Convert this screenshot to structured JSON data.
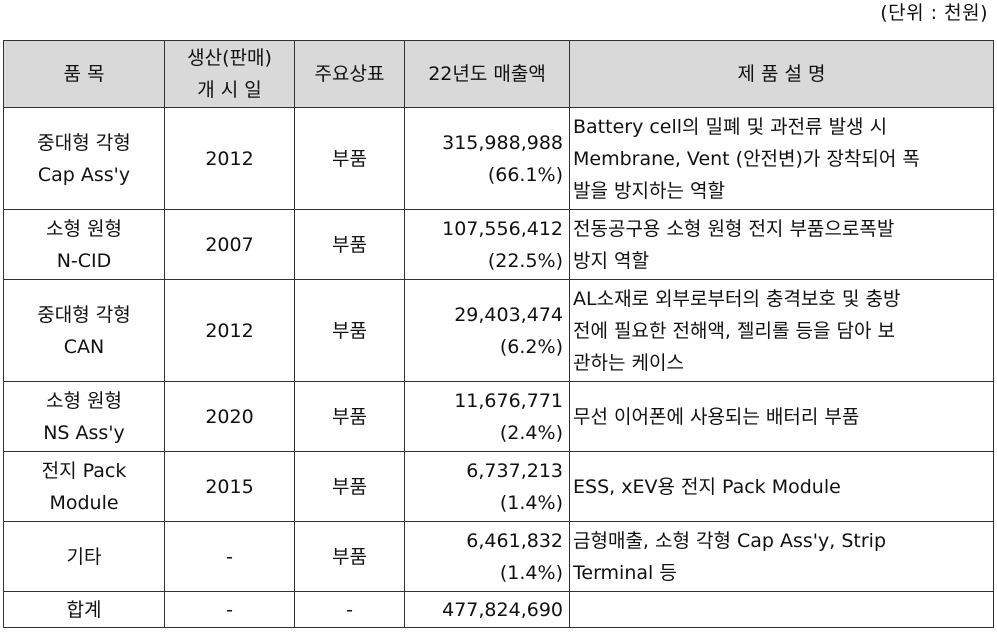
{
  "unit_note": "(단위 : 천원)",
  "header": {
    "item": "품 목",
    "start_line1": "생산(판매)",
    "start_line2": "개 시 일",
    "trademark": "주요상표",
    "sales_22": "22년도 매출액",
    "description": "제 품 설 명"
  },
  "rows": [
    {
      "name1": "중대형 각형",
      "name2": "Cap Ass'y",
      "year": "2012",
      "brand": "부품",
      "amount": "315,988,988",
      "pct": "(66.1%)",
      "desc1": "Battery cell의 밀폐 및 과전류 발생 시",
      "desc2": "Membrane, Vent (안전변)가 장착되어 폭",
      "desc3": "발을 방지하는 역할"
    },
    {
      "name1": "소형 원형",
      "name2": "N-CID",
      "year": "2007",
      "brand": "부품",
      "amount": "107,556,412",
      "pct": "(22.5%)",
      "desc1": "전동공구용 소형 원형 전지 부품으로폭발",
      "desc2": "방지 역할"
    },
    {
      "name1": "중대형 각형",
      "name2": "CAN",
      "year": "2012",
      "brand": "부품",
      "amount": "29,403,474",
      "pct": "(6.2%)",
      "desc1": "AL소재로 외부로부터의 충격보호 및 충방",
      "desc2": "전에 필요한 전해액, 젤리롤 등을 담아 보",
      "desc3": "관하는 케이스"
    },
    {
      "name1": "소형 원형",
      "name2": "NS Ass'y",
      "year": "2020",
      "brand": "부품",
      "amount": "11,676,771",
      "pct": "(2.4%)",
      "desc1": "무선 이어폰에 사용되는 배터리 부품"
    },
    {
      "name1": "전지 Pack",
      "name2": "Module",
      "year": "2015",
      "brand": "부품",
      "amount": "6,737,213",
      "pct": "(1.4%)",
      "desc1": "ESS, xEV용 전지 Pack Module"
    },
    {
      "name1": "기타",
      "year": "-",
      "brand": "부품",
      "amount": "6,461,832",
      "pct": "(1.4%)",
      "desc1": "금형매출, 소형 각형 Cap Ass'y, Strip",
      "desc2": "Terminal 등"
    }
  ],
  "total": {
    "label": "합계",
    "year": "-",
    "brand": "-",
    "amount": "477,824,690"
  }
}
